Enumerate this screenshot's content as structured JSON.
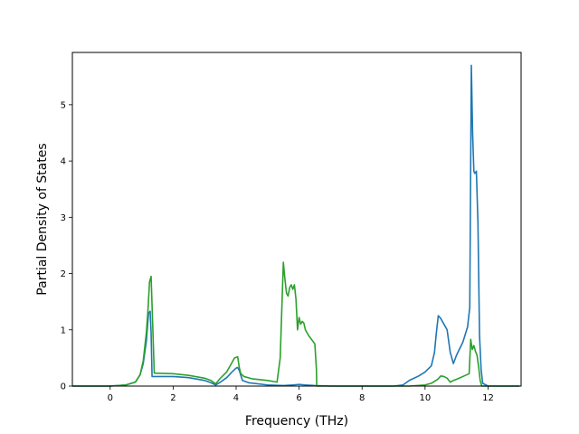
{
  "chart_data": {
    "type": "line",
    "title": "",
    "xlabel": "Frequency (THz)",
    "ylabel": "Partial Density of States",
    "xlim": [
      -1.2,
      13.05
    ],
    "ylim": [
      0,
      5.93
    ],
    "xticks": [
      0,
      2,
      4,
      6,
      8,
      10,
      12
    ],
    "yticks": [
      0,
      1,
      2,
      3,
      4,
      5
    ],
    "grid": false,
    "legend": "none",
    "series": [
      {
        "color": "#1f77b4",
        "x": [
          -1.2,
          0.0,
          0.5,
          0.8,
          0.95,
          1.05,
          1.15,
          1.22,
          1.27,
          1.3,
          1.33,
          1.4,
          2.0,
          2.5,
          3.0,
          3.2,
          3.35,
          3.5,
          3.7,
          3.85,
          4.0,
          4.05,
          4.1,
          4.2,
          4.4,
          5.0,
          5.5,
          5.8,
          6.0,
          6.2,
          6.5,
          7.0,
          8.0,
          9.0,
          9.3,
          9.5,
          9.8,
          10.0,
          10.2,
          10.3,
          10.35,
          10.42,
          10.5,
          10.6,
          10.7,
          10.8,
          10.9,
          11.0,
          11.2,
          11.35,
          11.42,
          11.47,
          11.51,
          11.55,
          11.58,
          11.63,
          11.68,
          11.73,
          11.78,
          11.83,
          12.0,
          13.0
        ],
        "y": [
          0,
          0,
          0.02,
          0.07,
          0.2,
          0.4,
          0.8,
          1.3,
          1.33,
          0.95,
          0.17,
          0.17,
          0.17,
          0.15,
          0.1,
          0.06,
          0.02,
          0.07,
          0.15,
          0.24,
          0.32,
          0.33,
          0.28,
          0.1,
          0.06,
          0.02,
          0.01,
          0.02,
          0.03,
          0.02,
          0.01,
          0,
          0,
          0,
          0.02,
          0.1,
          0.18,
          0.25,
          0.36,
          0.6,
          0.9,
          1.25,
          1.2,
          1.1,
          1.0,
          0.6,
          0.4,
          0.55,
          0.78,
          1.05,
          1.4,
          5.7,
          4.5,
          3.82,
          3.78,
          3.82,
          2.9,
          0.9,
          0.3,
          0.05,
          0,
          0
        ]
      },
      {
        "color": "#2ca02c",
        "x": [
          -1.2,
          0.0,
          0.5,
          0.8,
          0.95,
          1.05,
          1.15,
          1.2,
          1.25,
          1.3,
          1.35,
          1.4,
          2.0,
          2.5,
          3.0,
          3.2,
          3.35,
          3.5,
          3.7,
          3.85,
          3.95,
          4.05,
          4.1,
          4.15,
          4.25,
          4.5,
          5.0,
          5.3,
          5.4,
          5.5,
          5.55,
          5.6,
          5.65,
          5.7,
          5.75,
          5.8,
          5.85,
          5.9,
          5.95,
          6.0,
          6.05,
          6.1,
          6.15,
          6.2,
          6.3,
          6.5,
          6.55,
          6.56,
          7.0,
          8.0,
          9.0,
          9.5,
          10.0,
          10.2,
          10.4,
          10.5,
          10.6,
          10.7,
          10.8,
          10.9,
          11.0,
          11.2,
          11.4,
          11.45,
          11.5,
          11.55,
          11.6,
          11.65,
          11.7,
          11.75,
          11.8,
          12.0,
          13.0
        ],
        "y": [
          0,
          0,
          0.02,
          0.07,
          0.2,
          0.45,
          0.95,
          1.35,
          1.85,
          1.95,
          1.1,
          0.23,
          0.22,
          0.19,
          0.14,
          0.1,
          0.04,
          0.14,
          0.25,
          0.4,
          0.5,
          0.52,
          0.33,
          0.22,
          0.17,
          0.13,
          0.1,
          0.07,
          0.5,
          2.2,
          1.9,
          1.65,
          1.6,
          1.75,
          1.8,
          1.72,
          1.8,
          1.55,
          1.0,
          1.22,
          1.1,
          1.15,
          1.12,
          1.0,
          0.9,
          0.75,
          0.3,
          0,
          0,
          0,
          0,
          0,
          0.02,
          0.05,
          0.12,
          0.18,
          0.17,
          0.14,
          0.07,
          0.1,
          0.12,
          0.17,
          0.22,
          0.83,
          0.65,
          0.72,
          0.62,
          0.55,
          0.35,
          0.1,
          0,
          0,
          0
        ]
      }
    ]
  }
}
